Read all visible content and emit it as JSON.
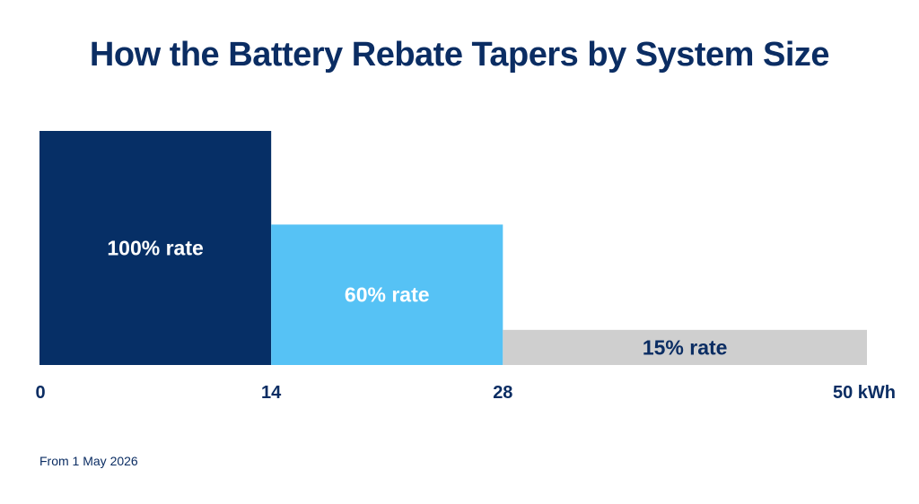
{
  "chart_data": {
    "type": "bar",
    "title": "How the Battery Rebate Tapers by System Size",
    "x_unit": "kWh",
    "xlim": [
      0,
      50
    ],
    "x_ticks": [
      {
        "value": 0,
        "label": "0"
      },
      {
        "value": 14,
        "label": "14"
      },
      {
        "value": 28,
        "label": "28"
      },
      {
        "value": 50,
        "label": "50 kWh"
      }
    ],
    "segments": [
      {
        "x_start": 0,
        "x_end": 14,
        "rate": 100,
        "label": "100% rate",
        "color": "#062f66",
        "text_color": "#ffffff"
      },
      {
        "x_start": 14,
        "x_end": 28,
        "rate": 60,
        "label": "60% rate",
        "color": "#56c2f5",
        "text_color": "#ffffff"
      },
      {
        "x_start": 28,
        "x_end": 50,
        "rate": 15,
        "label": "15% rate",
        "color": "#cfcfcf",
        "text_color": "#0b2d63"
      }
    ],
    "ylim": [
      0,
      100
    ],
    "grid": false,
    "legend": "none"
  },
  "footnote": "From 1 May 2026",
  "colors": {
    "title": "#0b2d63",
    "axis_text": "#0b2d63"
  }
}
